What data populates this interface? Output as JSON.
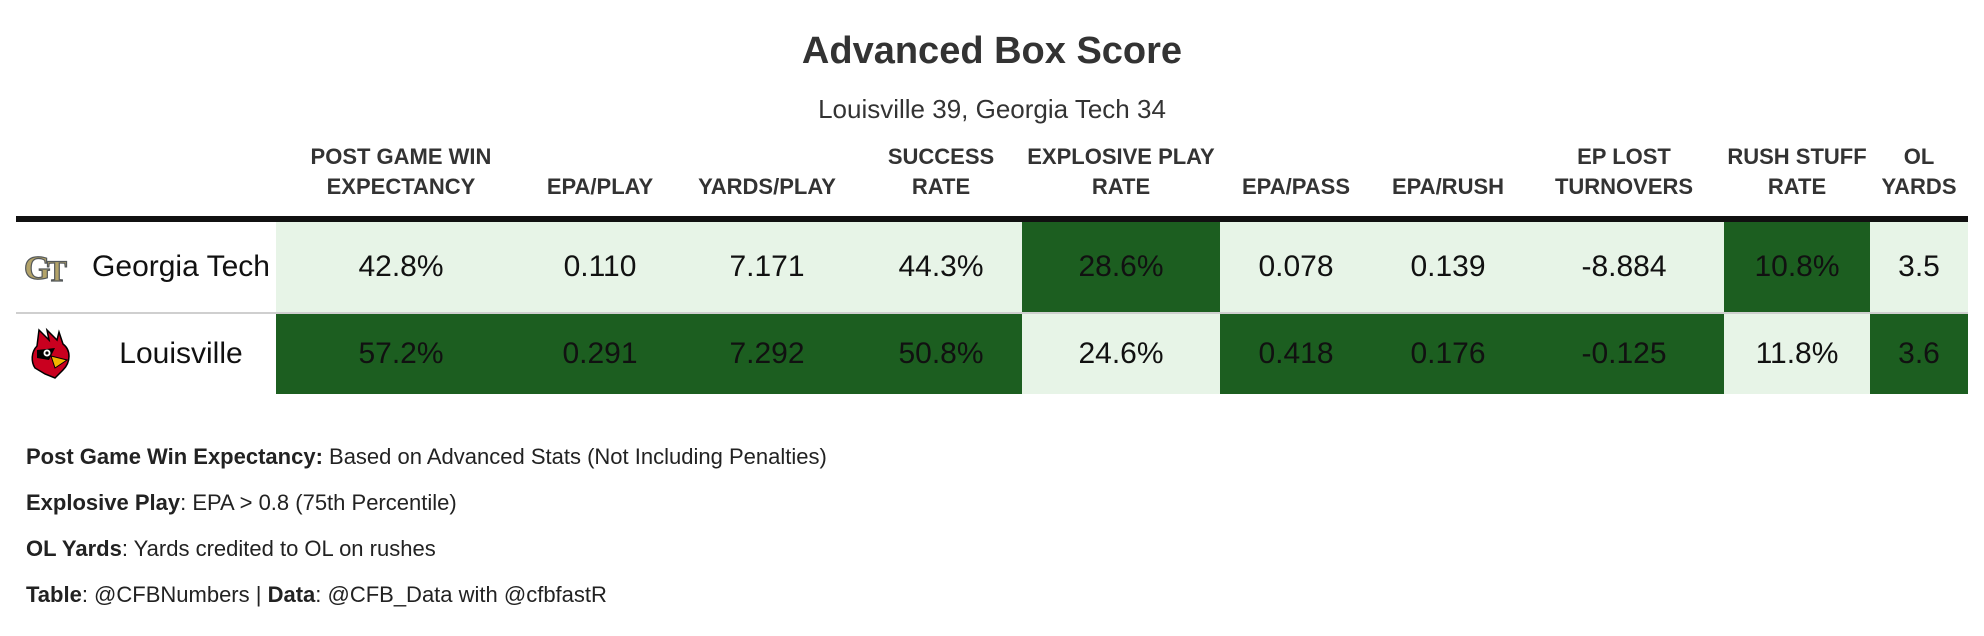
{
  "title": "Advanced Box Score",
  "subtitle": "Louisville 39, Georgia Tech 34",
  "columns": [
    "POST GAME WIN EXPECTANCY",
    "EPA/PLAY",
    "YARDS/PLAY",
    "SUCCESS RATE",
    "EXPLOSIVE PLAY RATE",
    "EPA/PASS",
    "EPA/RUSH",
    "EP LOST TURNOVERS",
    "RUSH STUFF RATE",
    "OL YARDS"
  ],
  "teams": [
    {
      "name": "Georgia Tech",
      "logo": "georgia-tech-gt-logo",
      "values": [
        "42.8%",
        "0.110",
        "7.171",
        "44.3%",
        "28.6%",
        "0.078",
        "0.139",
        "-8.884",
        "10.8%",
        "3.5"
      ],
      "highlight": [
        "light",
        "light",
        "light",
        "light",
        "dark",
        "light",
        "light",
        "light",
        "dark",
        "light"
      ]
    },
    {
      "name": "Louisville",
      "logo": "louisville-cardinal-logo",
      "values": [
        "57.2%",
        "0.291",
        "7.292",
        "50.8%",
        "24.6%",
        "0.418",
        "0.176",
        "-0.125",
        "11.8%",
        "3.6"
      ],
      "highlight": [
        "dark",
        "dark",
        "dark",
        "dark",
        "light",
        "dark",
        "dark",
        "dark",
        "light",
        "dark"
      ]
    }
  ],
  "colors": {
    "better": "#1c5e20",
    "worse": "#e7f4e7",
    "rule": "#111111"
  },
  "notes": [
    {
      "label": "Post Game Win Expectancy:",
      "text": " Based on Advanced Stats (Not Including Penalties)"
    },
    {
      "label": "Explosive Play",
      "text": ": EPA > 0.8 (75th Percentile)"
    },
    {
      "label": "OL Yards",
      "text": ": Yards credited to OL on rushes"
    }
  ],
  "credits": {
    "table_label": "Table",
    "table_text": ": @CFBNumbers | ",
    "data_label": "Data",
    "data_text": ": @CFB_Data with @cfbfastR"
  }
}
